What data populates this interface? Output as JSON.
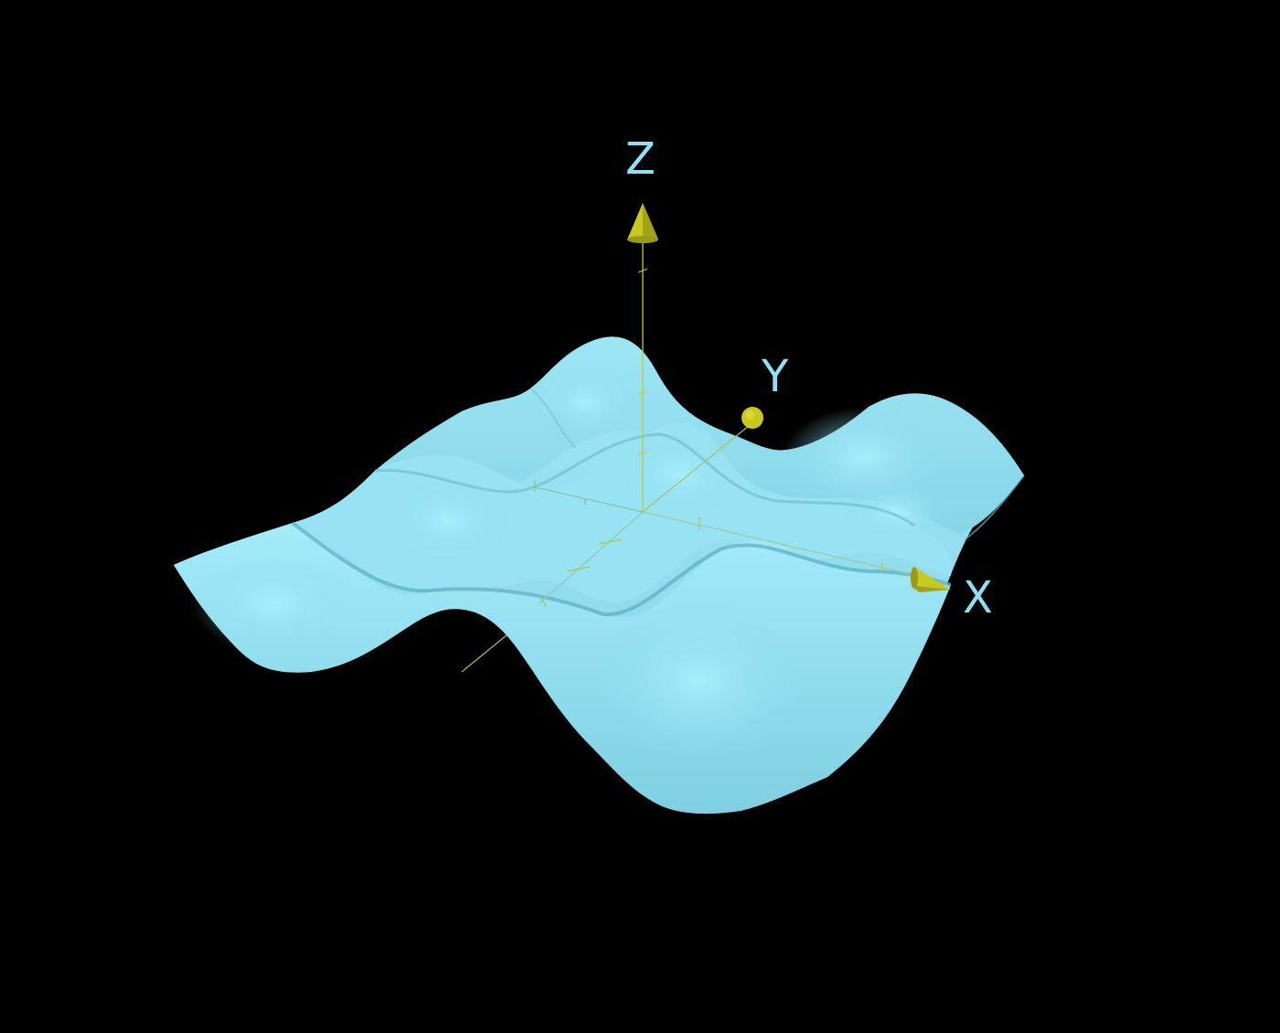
{
  "axes": {
    "x_label": "X",
    "y_label": "Y",
    "z_label": "Z"
  },
  "colors": {
    "background": "#000000",
    "surface_light": "#9ae6f6",
    "surface_mid": "#87d6e8",
    "surface_shadow": "#5fb3c6",
    "axis_line": "#c8c832",
    "axis_head": "#c8c820",
    "label": "#8fe0f5"
  },
  "icons": {
    "x_axis_head": "cone-arrowhead-icon",
    "y_axis_head": "cone-arrowhead-icon",
    "z_axis_head": "cone-arrowhead-icon"
  }
}
